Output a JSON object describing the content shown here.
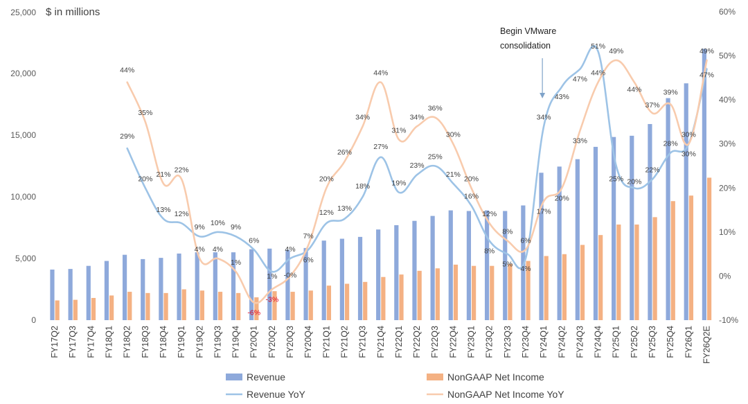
{
  "chart_data": {
    "type": "bar+line",
    "unit_label": "$ in millions",
    "categories": [
      "FY17Q2",
      "FY17Q3",
      "FY17Q4",
      "FY18Q1",
      "FY18Q2",
      "FY18Q3",
      "FY18Q4",
      "FY19Q1",
      "FY19Q2",
      "FY19Q3",
      "FY19Q4",
      "FY20Q1",
      "FY20Q2",
      "FY20Q3",
      "FY20Q4",
      "FY21Q1",
      "FY21Q2",
      "FY21Q3",
      "FY21Q4",
      "FY22Q1",
      "FY22Q2",
      "FY22Q3",
      "FY22Q4",
      "FY23Q1",
      "FY23Q2",
      "FY23Q3",
      "FY23Q4",
      "FY24Q1",
      "FY24Q2",
      "FY24Q3",
      "FY24Q4",
      "FY25Q1",
      "FY25Q2",
      "FY25Q3",
      "FY25Q4",
      "FY26Q1",
      "FY26Q2E"
    ],
    "left_axis": {
      "ticks": [
        "0",
        "5,000",
        "10,000",
        "15,000",
        "20,000",
        "25,000"
      ],
      "range": [
        0,
        25000
      ]
    },
    "right_axis": {
      "ticks": [
        "-10%",
        "0%",
        "10%",
        "20%",
        "30%",
        "40%",
        "50%",
        "60%"
      ],
      "range": [
        -10,
        60
      ]
    },
    "series": [
      {
        "name": "Revenue",
        "kind": "bar",
        "axis": "left",
        "color": "#8EA9DB",
        "values": [
          4100,
          4150,
          4400,
          4800,
          5300,
          4950,
          5050,
          5400,
          5500,
          5500,
          5500,
          5750,
          5800,
          5700,
          5850,
          6450,
          6600,
          6750,
          7350,
          7700,
          8050,
          8450,
          8900,
          8850,
          8900,
          8850,
          9300,
          11950,
          12450,
          13050,
          14050,
          14850,
          14950,
          15900,
          18000,
          19200,
          22000
        ]
      },
      {
        "name": "NonGAAP Net Income",
        "kind": "bar",
        "axis": "left",
        "color": "#F4B183",
        "values": [
          1600,
          1650,
          1800,
          2000,
          2300,
          2200,
          2200,
          2500,
          2400,
          2300,
          2200,
          1850,
          2350,
          2300,
          2400,
          2800,
          2950,
          3100,
          3500,
          3700,
          4000,
          4200,
          4500,
          4400,
          4400,
          4550,
          4800,
          5200,
          5350,
          6100,
          6900,
          7750,
          7750,
          8350,
          9650,
          10100,
          11550
        ]
      },
      {
        "name": "Revenue YoY",
        "kind": "line",
        "axis": "right",
        "color": "#9DC3E6",
        "values": [
          null,
          null,
          null,
          null,
          29,
          20,
          13,
          12,
          9,
          10,
          9,
          6,
          1,
          4,
          6,
          12,
          13,
          18,
          27,
          19,
          23,
          25,
          21,
          16,
          8,
          5,
          4,
          34,
          43,
          47,
          51,
          25,
          20,
          22,
          28,
          30,
          47
        ],
        "labels": [
          null,
          null,
          null,
          null,
          "29%",
          "20%",
          "13%",
          "12%",
          "9%",
          "10%",
          "9%",
          "6%",
          "1%",
          "4%",
          "6%",
          "12%",
          "13%",
          "18%",
          "27%",
          "19%",
          "23%",
          "25%",
          "21%",
          "16%",
          "8%",
          "5%",
          "4%",
          "34%",
          "43%",
          "47%",
          "51%",
          "25%",
          "20%",
          "22%",
          "28%",
          "30%",
          "47%"
        ]
      },
      {
        "name": "NonGAAP Net Income YoY",
        "kind": "line",
        "axis": "right",
        "color": "#F8CBAD",
        "values": [
          null,
          null,
          null,
          null,
          44,
          35,
          21,
          22,
          4,
          4,
          1,
          -6,
          -3,
          0,
          7,
          20,
          26,
          34,
          44,
          31,
          34,
          36,
          30,
          20,
          12,
          8,
          6,
          17,
          20,
          33,
          44,
          49,
          44,
          37,
          39,
          30,
          49
        ],
        "labels": [
          null,
          null,
          null,
          null,
          "44%",
          "35%",
          "21%",
          "22%",
          "4%",
          "4%",
          "1%",
          "-6%",
          "-3%",
          "-0%",
          "7%",
          "20%",
          "26%",
          "34%",
          "44%",
          "31%",
          "34%",
          "36%",
          "30%",
          "20%",
          "12%",
          "8%",
          "6%",
          "17%",
          "20%",
          "33%",
          "44%",
          "49%",
          "44%",
          "37%",
          "39%",
          "30%",
          "49%"
        ]
      }
    ],
    "annotations": [
      {
        "text_lines": [
          "Begin VMware",
          "consolidation"
        ],
        "at_category": "FY24Q1"
      }
    ],
    "legend": [
      {
        "label": "Revenue",
        "kind": "bar",
        "color": "#8EA9DB"
      },
      {
        "label": "NonGAAP Net Income",
        "kind": "bar",
        "color": "#F4B183"
      },
      {
        "label": "Revenue YoY",
        "kind": "line",
        "color": "#9DC3E6"
      },
      {
        "label": "NonGAAP Net Income YoY",
        "kind": "line",
        "color": "#F8CBAD"
      }
    ],
    "legend_position": "bottom"
  }
}
